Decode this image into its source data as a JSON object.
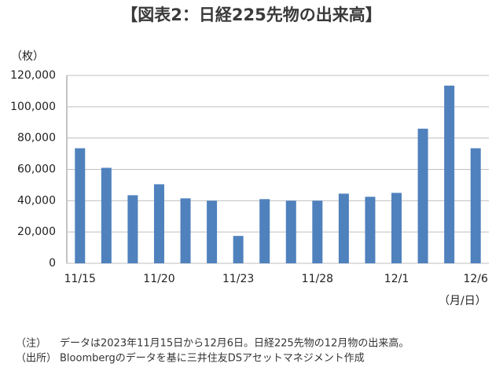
{
  "chart_data": {
    "type": "bar",
    "title": "【図表2：日経225先物の出来高】",
    "y_unit_label": "（枚）",
    "x_unit_label": "（月/日）",
    "categories": [
      "11/15",
      null,
      null,
      "11/20",
      null,
      null,
      "11/23",
      null,
      null,
      "11/28",
      null,
      null,
      "12/1",
      null,
      null,
      "12/6"
    ],
    "values": [
      73500,
      61000,
      43500,
      50500,
      41500,
      40000,
      17500,
      41000,
      40000,
      40000,
      44500,
      42500,
      45000,
      86000,
      113500,
      73500
    ],
    "color": "#4f81bd",
    "ylim": [
      0,
      120000
    ],
    "yticks": [
      0,
      {
        "value": 20000,
        "label": "20,000"
      },
      {
        "value": 40000,
        "label": "40,000"
      },
      {
        "value": 60000,
        "label": "60,000"
      },
      {
        "value": 80000,
        "label": "80,000"
      },
      {
        "value": 100000,
        "label": "100,000"
      },
      {
        "value": 120000,
        "label": "120,000"
      }
    ],
    "grid": true,
    "notes": [
      {
        "label": "（注）",
        "text": "データは2023年11月15日から12月6日。日経225先物の12月物の出来高。"
      },
      {
        "label": "（出所）",
        "text": "Bloombergのデータを基に三井住友DSアセットマネジメント作成"
      }
    ]
  }
}
